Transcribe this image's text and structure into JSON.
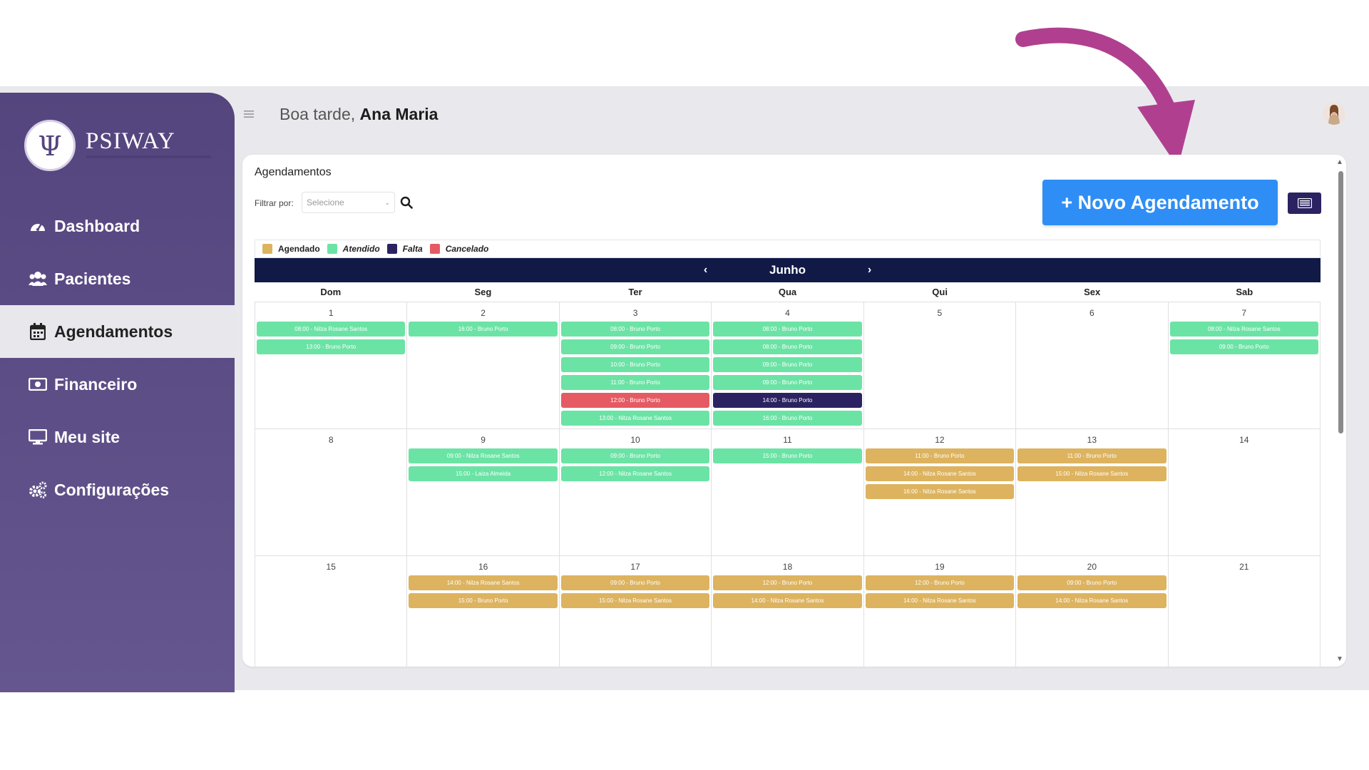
{
  "brand": {
    "name": "PSIWAY",
    "accent": "#55457e"
  },
  "header": {
    "greeting_prefix": "Boa tarde,",
    "user_name": "Ana Maria"
  },
  "sidebar": {
    "items": [
      {
        "label": "Dashboard",
        "icon": "dashboard-icon",
        "active": false
      },
      {
        "label": "Pacientes",
        "icon": "users-icon",
        "active": false
      },
      {
        "label": "Agendamentos",
        "icon": "calendar-icon",
        "active": true
      },
      {
        "label": "Financeiro",
        "icon": "money-icon",
        "active": false
      },
      {
        "label": "Meu site",
        "icon": "monitor-icon",
        "active": false
      },
      {
        "label": "Configurações",
        "icon": "gears-icon",
        "active": false
      }
    ]
  },
  "card": {
    "title": "Agendamentos",
    "filter_label": "Filtrar por:",
    "filter_placeholder": "Selecione",
    "new_button": "+ Novo Agendamento"
  },
  "legend": [
    {
      "label": "Agendado",
      "color": "#ddb35f",
      "italic": false
    },
    {
      "label": "Atendido",
      "color": "#6be3a5",
      "italic": true
    },
    {
      "label": "Falta",
      "color": "#2b2361",
      "italic": true
    },
    {
      "label": "Cancelado",
      "color": "#e65b63",
      "italic": true
    }
  ],
  "calendar": {
    "month": "Junho",
    "weekdays": [
      "Dom",
      "Seg",
      "Ter",
      "Qua",
      "Qui",
      "Sex",
      "Sab"
    ],
    "weeks": [
      [
        {
          "day": "1",
          "events": [
            {
              "text": "08:00 - Nilza Rosane Santos",
              "status": "atendido"
            },
            {
              "text": "13:00 - Bruno Porto",
              "status": "atendido"
            }
          ]
        },
        {
          "day": "2",
          "events": [
            {
              "text": "16:00 - Bruno Porto",
              "status": "atendido"
            }
          ]
        },
        {
          "day": "3",
          "events": [
            {
              "text": "08:00 - Bruno Porto",
              "status": "atendido"
            },
            {
              "text": "09:00 - Bruno Porto",
              "status": "atendido"
            },
            {
              "text": "10:00 - Bruno Porto",
              "status": "atendido"
            },
            {
              "text": "11:00 - Bruno Porto",
              "status": "atendido"
            },
            {
              "text": "12:00 - Bruno Porto",
              "status": "cancelado"
            },
            {
              "text": "13:00 - Nilza Rosane Santos",
              "status": "atendido"
            }
          ]
        },
        {
          "day": "4",
          "events": [
            {
              "text": "08:00 - Bruno Porto",
              "status": "atendido"
            },
            {
              "text": "08:00 - Bruno Porto",
              "status": "atendido"
            },
            {
              "text": "09:00 - Bruno Porto",
              "status": "atendido"
            },
            {
              "text": "09:00 - Bruno Porto",
              "status": "atendido"
            },
            {
              "text": "14:00 - Bruno Porto",
              "status": "falta"
            },
            {
              "text": "16:00 - Bruno Porto",
              "status": "atendido"
            }
          ]
        },
        {
          "day": "5",
          "events": []
        },
        {
          "day": "6",
          "events": []
        },
        {
          "day": "7",
          "events": [
            {
              "text": "08:00 - Nilza Rosane Santos",
              "status": "atendido"
            },
            {
              "text": "09:00 - Bruno Porto",
              "status": "atendido"
            }
          ]
        }
      ],
      [
        {
          "day": "8",
          "events": []
        },
        {
          "day": "9",
          "events": [
            {
              "text": "09:00 - Nilza Rosane Santos",
              "status": "atendido"
            },
            {
              "text": "15:00 - Laiza Almeida",
              "status": "atendido"
            }
          ]
        },
        {
          "day": "10",
          "events": [
            {
              "text": "09:00 - Bruno Porto",
              "status": "atendido"
            },
            {
              "text": "12:00 - Nilza Rosane Santos",
              "status": "atendido"
            }
          ]
        },
        {
          "day": "11",
          "events": [
            {
              "text": "15:00 - Bruno Porto",
              "status": "atendido"
            }
          ]
        },
        {
          "day": "12",
          "events": [
            {
              "text": "11:00 - Bruno Porto",
              "status": "agendado"
            },
            {
              "text": "14:00 - Nilza Rosane Santos",
              "status": "agendado"
            },
            {
              "text": "16:00 - Nilza Rosane Santos",
              "status": "agendado"
            }
          ]
        },
        {
          "day": "13",
          "events": [
            {
              "text": "11:00 - Bruno Porto",
              "status": "agendado"
            },
            {
              "text": "15:00 - Nilza Rosane Santos",
              "status": "agendado"
            }
          ]
        },
        {
          "day": "14",
          "events": []
        }
      ],
      [
        {
          "day": "15",
          "events": []
        },
        {
          "day": "16",
          "events": [
            {
              "text": "14:00 - Nilza Rosane Santos",
              "status": "agendado"
            },
            {
              "text": "15:00 - Bruno Porto",
              "status": "agendado"
            }
          ]
        },
        {
          "day": "17",
          "events": [
            {
              "text": "09:00 - Bruno Porto",
              "status": "agendado"
            },
            {
              "text": "15:00 - Nilza Rosane Santos",
              "status": "agendado"
            }
          ]
        },
        {
          "day": "18",
          "events": [
            {
              "text": "12:00 - Bruno Porto",
              "status": "agendado"
            },
            {
              "text": "14:00 - Nilza Rosane Santos",
              "status": "agendado"
            }
          ]
        },
        {
          "day": "19",
          "events": [
            {
              "text": "12:00 - Bruno Porto",
              "status": "agendado"
            },
            {
              "text": "14:00 - Nilza Rosane Santos",
              "status": "agendado"
            }
          ]
        },
        {
          "day": "20",
          "events": [
            {
              "text": "09:00 - Bruno Porto",
              "status": "agendado"
            },
            {
              "text": "14:00 - Nilza Rosane Santos",
              "status": "agendado"
            }
          ]
        },
        {
          "day": "21",
          "events": []
        }
      ]
    ]
  }
}
